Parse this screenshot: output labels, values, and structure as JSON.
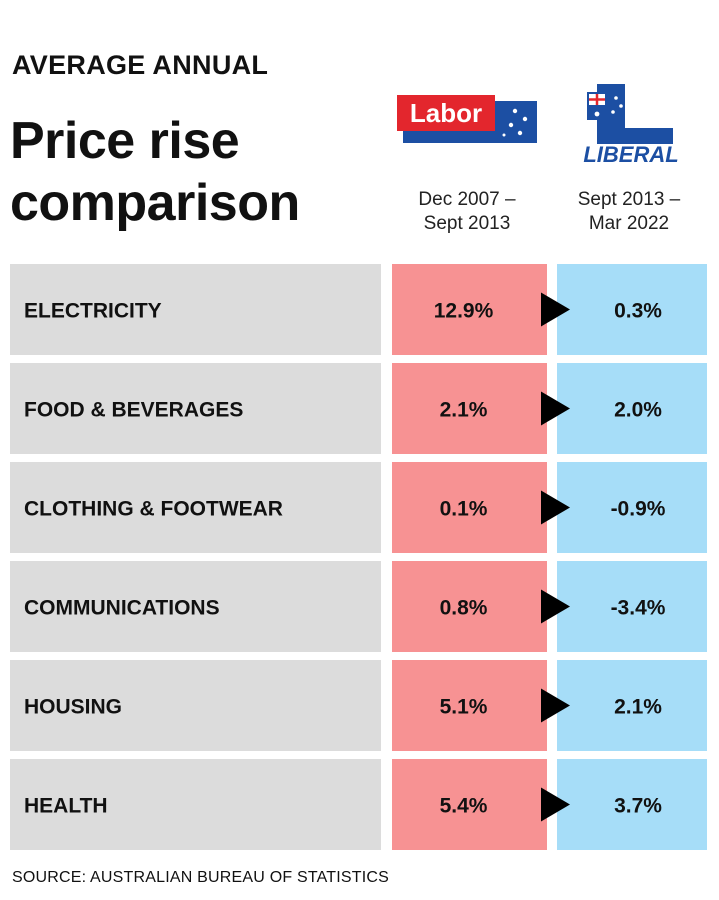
{
  "header": {
    "kicker": "AVERAGE ANNUAL",
    "title_line1": "Price rise",
    "title_line2": "comparison"
  },
  "logos": {
    "labor_text": "Labor",
    "liberal_text": "LIBERAL"
  },
  "columns": {
    "labor_period_line1": "Dec 2007 –",
    "labor_period_line2": "Sept 2013",
    "liberal_period_line1": "Sept 2013 –",
    "liberal_period_line2": "Mar 2022"
  },
  "colors": {
    "category_bg": "#dcdcdc",
    "labor_bg": "#f79293",
    "liberal_bg": "#a6ddf8",
    "labor_red": "#e3262d",
    "liberal_blue": "#1c4fa3",
    "arrow": "#000000"
  },
  "chart_data": {
    "type": "table",
    "unit": "%",
    "categories": [
      "ELECTRICITY",
      "FOOD & BEVERAGES",
      "CLOTHING & FOOTWEAR",
      "COMMUNICATIONS",
      "HOUSING",
      "HEALTH"
    ],
    "labor_labels": [
      "12.9%",
      "2.1%",
      "0.1%",
      "0.8%",
      "5.1%",
      "5.4%"
    ],
    "liberal_labels": [
      "0.3%",
      "2.0%",
      "-0.9%",
      "-3.4%",
      "2.1%",
      "3.7%"
    ],
    "series": [
      {
        "name": "Labor",
        "values": [
          12.9,
          2.1,
          0.1,
          0.8,
          5.1,
          5.4
        ]
      },
      {
        "name": "Liberal",
        "values": [
          0.3,
          2.0,
          -0.9,
          -3.4,
          2.1,
          3.7
        ]
      }
    ]
  },
  "footer": {
    "source": "SOURCE: AUSTRALIAN BUREAU OF STATISTICS"
  }
}
